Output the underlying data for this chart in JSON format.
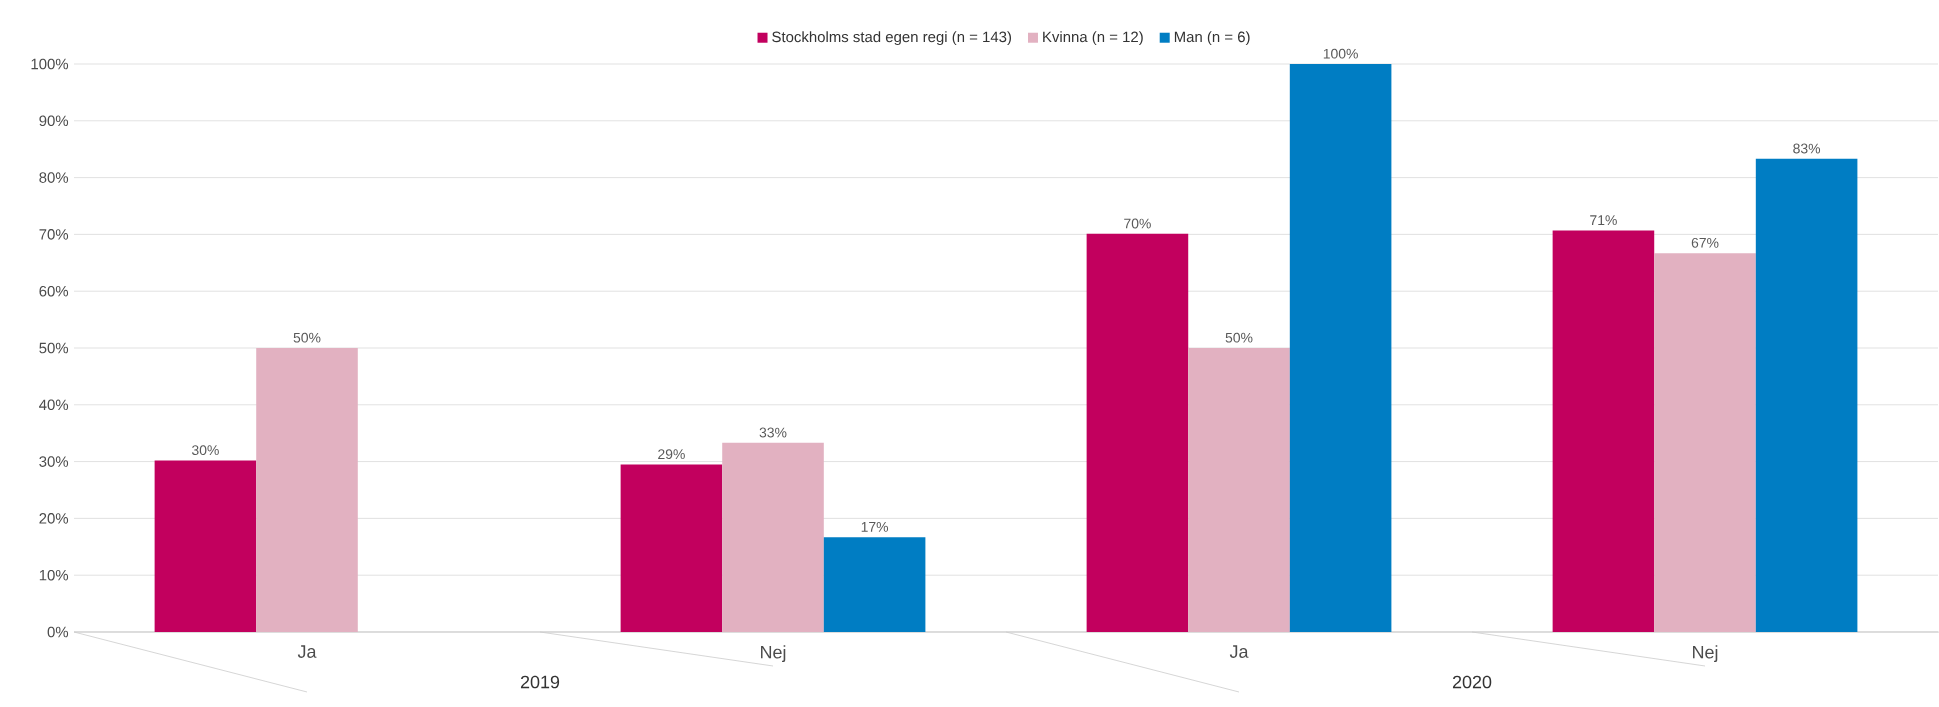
{
  "chart_data": {
    "type": "bar",
    "categories": [
      "Ja",
      "Nej",
      "Ja",
      "Nej"
    ],
    "annotations": [
      "2019",
      "2020"
    ],
    "series": [
      {
        "name": "Stockholms stad egen regi (n = 143)",
        "color": "#c2005e",
        "values": [
          30.2,
          29.5,
          70.1,
          70.7
        ],
        "value_labels": [
          "30%",
          "29%",
          "70%",
          "71%"
        ]
      },
      {
        "name": "Kvinna (n = 12)",
        "color": "#e2b1c1",
        "values": [
          50,
          33.3,
          50,
          66.7
        ],
        "value_labels": [
          "50%",
          "33%",
          "50%",
          "67%"
        ]
      },
      {
        "name": "Man (n = 6)",
        "color": "#007dc3",
        "values": [
          null,
          16.7,
          100,
          83.3
        ],
        "value_labels": [
          null,
          "17%",
          "100%",
          "83%"
        ]
      }
    ],
    "ylim": [
      0,
      100
    ],
    "yticks": [
      {
        "value": 0,
        "label": "0%"
      },
      {
        "value": 10,
        "label": "10%"
      },
      {
        "value": 20,
        "label": "20%"
      },
      {
        "value": 30,
        "label": "30%"
      },
      {
        "value": 40,
        "label": "40%"
      },
      {
        "value": 50,
        "label": "50%"
      },
      {
        "value": 60,
        "label": "60%"
      },
      {
        "value": 70,
        "label": "70%"
      },
      {
        "value": 80,
        "label": "80%"
      },
      {
        "value": 90,
        "label": "90%"
      },
      {
        "value": 100,
        "label": "100%"
      }
    ],
    "grid": "y",
    "legend": "top"
  }
}
